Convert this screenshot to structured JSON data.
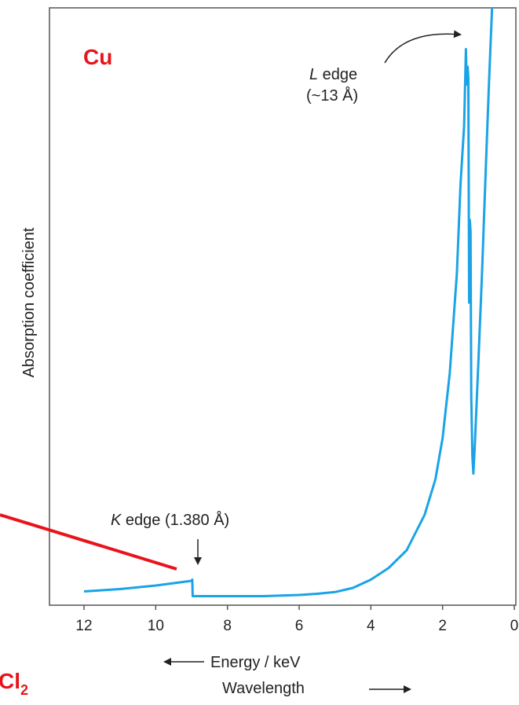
{
  "chart_data": {
    "type": "line",
    "title": "",
    "element_label": "Cu",
    "xlabel": "Energy / keV",
    "xlabel2": "Wavelength",
    "ylabel": "Absorption coefficient",
    "x_reversed": true,
    "xlim": [
      12,
      0
    ],
    "xticks": [
      12,
      10,
      8,
      6,
      4,
      2,
      0
    ],
    "tick_labels": [
      "12",
      "10",
      "8",
      "6",
      "4",
      "2",
      "0"
    ],
    "y_ticks_shown": false,
    "grid": false,
    "series": [
      {
        "color": "#1aa3e6",
        "points": [
          [
            12.0,
            0.01
          ],
          [
            11.5,
            0.012
          ],
          [
            11.0,
            0.014
          ],
          [
            10.5,
            0.017
          ],
          [
            10.0,
            0.02
          ],
          [
            9.5,
            0.024
          ],
          [
            9.0,
            0.028
          ],
          [
            8.98,
            0.03
          ],
          [
            8.97,
            0.002
          ],
          [
            8.5,
            0.002
          ],
          [
            8.0,
            0.002
          ],
          [
            7.5,
            0.002
          ],
          [
            7.0,
            0.002
          ],
          [
            6.5,
            0.003
          ],
          [
            6.0,
            0.004
          ],
          [
            5.5,
            0.006
          ],
          [
            5.0,
            0.009
          ],
          [
            4.5,
            0.016
          ],
          [
            4.0,
            0.03
          ],
          [
            3.5,
            0.05
          ],
          [
            3.0,
            0.08
          ],
          [
            2.5,
            0.14
          ],
          [
            2.2,
            0.2
          ],
          [
            2.0,
            0.27
          ],
          [
            1.8,
            0.38
          ],
          [
            1.6,
            0.55
          ],
          [
            1.5,
            0.7
          ],
          [
            1.4,
            0.8
          ],
          [
            1.35,
            0.93
          ],
          [
            1.33,
            0.87
          ],
          [
            1.3,
            0.9
          ],
          [
            1.28,
            0.88
          ],
          [
            1.26,
            0.5
          ],
          [
            1.24,
            0.64
          ],
          [
            1.22,
            0.62
          ],
          [
            1.2,
            0.34
          ],
          [
            1.17,
            0.24
          ],
          [
            1.14,
            0.21
          ],
          [
            1.1,
            0.26
          ],
          [
            1.0,
            0.4
          ],
          [
            0.9,
            0.55
          ],
          [
            0.8,
            0.72
          ],
          [
            0.7,
            0.88
          ],
          [
            0.62,
            1.0
          ]
        ]
      }
    ],
    "annotations": [
      {
        "id": "k_edge",
        "text_italic": "K",
        "text": " edge (1.380 Å)",
        "x": 8.98,
        "y": 0.03
      },
      {
        "id": "l_edge",
        "text_italic": "L",
        "text": " edge",
        "text2": "(~13 Å)",
        "x": 1.35,
        "y": 0.93
      }
    ]
  },
  "bottom_label": "Cl",
  "bottom_label_sub": "2",
  "colors": {
    "curve": "#1aa3e6",
    "accent": "#e8141c",
    "axis": "#555555"
  }
}
